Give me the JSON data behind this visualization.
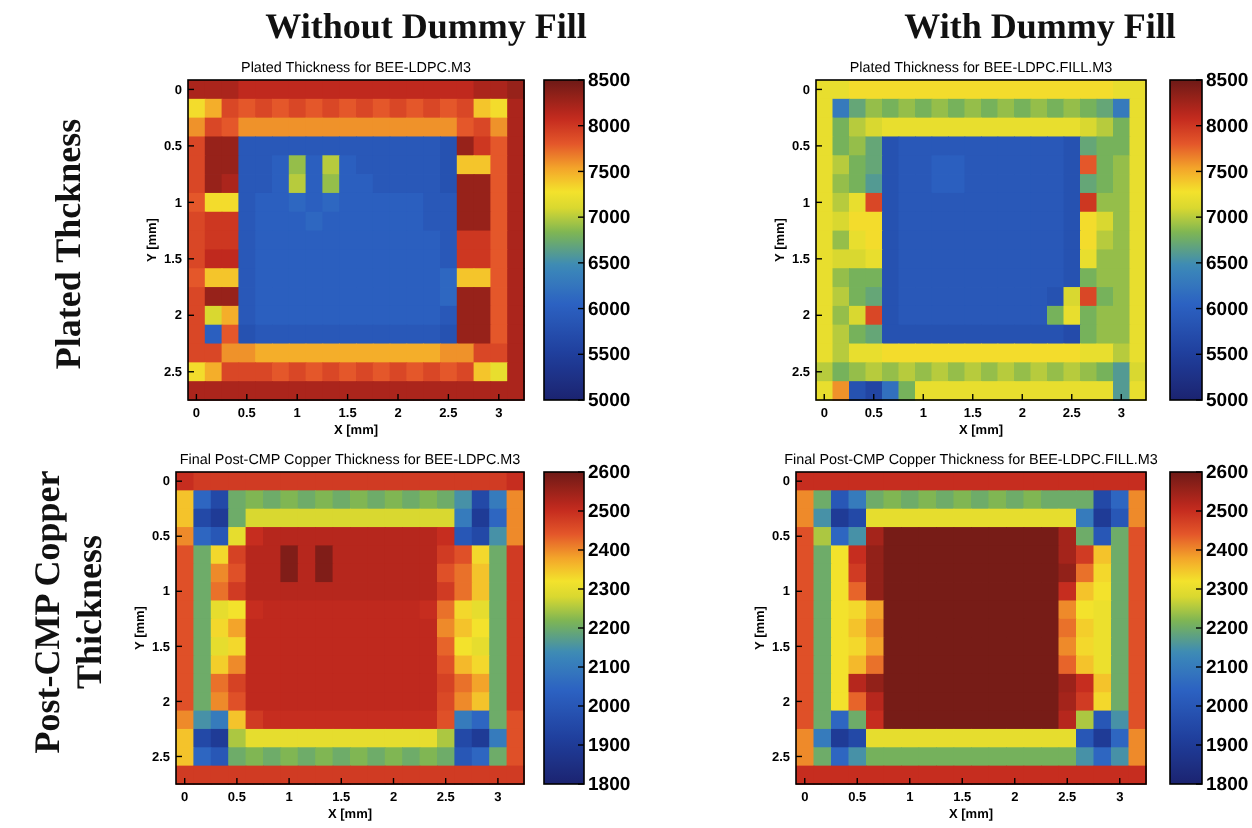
{
  "chart_data": [
    {
      "type": "heatmap",
      "title": "Plated Thickness for BEE-LDPC.M3",
      "xlabel": "X [mm]",
      "ylabel": "Y [mm]",
      "categories": [
        "0",
        null,
        null,
        "0.5",
        null,
        null,
        "1",
        null,
        null,
        "1.5",
        null,
        null,
        "2",
        null,
        null,
        "2.5",
        null,
        null,
        "3",
        null
      ],
      "y_categories": [
        "0",
        null,
        null,
        "0.5",
        null,
        null,
        "1",
        null,
        null,
        "1.5",
        null,
        null,
        "2",
        null,
        null,
        "2.5",
        null
      ],
      "cells": [
        [
          8200,
          8200,
          8200,
          8100,
          8100,
          8100,
          8100,
          8100,
          8100,
          8100,
          8100,
          8100,
          8100,
          8100,
          8100,
          8100,
          8100,
          8200,
          8200,
          8300
        ],
        [
          7300,
          7500,
          7900,
          7800,
          7900,
          7800,
          7900,
          7800,
          7900,
          7800,
          7900,
          7800,
          7900,
          7800,
          7900,
          7800,
          7900,
          7400,
          7300,
          8200
        ],
        [
          7600,
          7900,
          7800,
          7600,
          7600,
          7600,
          7600,
          7600,
          7600,
          7600,
          7600,
          7600,
          7600,
          7600,
          7600,
          7600,
          7800,
          7900,
          7600,
          8200
        ],
        [
          7900,
          8300,
          8300,
          5900,
          5900,
          5900,
          5900,
          5900,
          5900,
          5900,
          5900,
          5900,
          5900,
          5900,
          5900,
          5800,
          8300,
          8000,
          7800,
          8200
        ],
        [
          7900,
          8300,
          8300,
          5900,
          5900,
          6000,
          6900,
          6000,
          7000,
          6000,
          5900,
          5900,
          5900,
          5900,
          5900,
          5800,
          7400,
          7400,
          7800,
          8200
        ],
        [
          7900,
          8300,
          8200,
          5900,
          5900,
          6000,
          7000,
          6000,
          6900,
          6000,
          6000,
          5900,
          5900,
          5900,
          5900,
          5800,
          8300,
          8300,
          7800,
          8200
        ],
        [
          7800,
          7300,
          7300,
          5900,
          6000,
          6000,
          6100,
          6000,
          6100,
          6000,
          6000,
          6000,
          6000,
          6000,
          5900,
          5900,
          8300,
          8300,
          7800,
          8200
        ],
        [
          7900,
          8000,
          8000,
          5900,
          6000,
          6000,
          6000,
          6100,
          6000,
          6000,
          6000,
          6000,
          6000,
          6000,
          5900,
          5900,
          8300,
          8300,
          7800,
          8200
        ],
        [
          7900,
          8000,
          8000,
          5900,
          6000,
          6000,
          6000,
          6000,
          6000,
          6000,
          6000,
          6000,
          6000,
          6000,
          6000,
          5900,
          8000,
          8000,
          7800,
          8200
        ],
        [
          7900,
          8100,
          8100,
          5900,
          6000,
          6000,
          6000,
          6000,
          6000,
          6000,
          6000,
          6000,
          6000,
          6000,
          6000,
          5900,
          8000,
          8000,
          7800,
          8200
        ],
        [
          7800,
          7400,
          7400,
          5900,
          6000,
          6000,
          6000,
          6000,
          6000,
          6000,
          6000,
          6000,
          6000,
          6000,
          6000,
          6100,
          7400,
          7400,
          7800,
          8200
        ],
        [
          7900,
          8300,
          8300,
          5900,
          6000,
          6000,
          6000,
          6000,
          6000,
          6000,
          6000,
          6000,
          6000,
          6000,
          6000,
          6100,
          8300,
          8300,
          7800,
          8200
        ],
        [
          7900,
          7100,
          7500,
          5900,
          6000,
          6000,
          6000,
          6000,
          6000,
          6000,
          6000,
          6000,
          6000,
          6000,
          6000,
          5900,
          8300,
          8300,
          7800,
          8200
        ],
        [
          7900,
          6000,
          7800,
          5800,
          5900,
          5900,
          5900,
          5900,
          5900,
          5900,
          5900,
          5900,
          5900,
          5900,
          5900,
          5800,
          8300,
          8300,
          7800,
          8200
        ],
        [
          7900,
          7900,
          7600,
          7600,
          7500,
          7500,
          7500,
          7500,
          7500,
          7500,
          7500,
          7500,
          7500,
          7500,
          7500,
          7600,
          7600,
          7900,
          7900,
          8200
        ],
        [
          7300,
          7500,
          7900,
          7900,
          7900,
          7800,
          7900,
          7800,
          7900,
          7800,
          7900,
          7800,
          7900,
          7800,
          7900,
          7800,
          7900,
          7400,
          7200,
          8200
        ],
        [
          8200,
          8200,
          8200,
          8200,
          8200,
          8200,
          8200,
          8200,
          8200,
          8200,
          8200,
          8200,
          8200,
          8200,
          8200,
          8200,
          8200,
          8200,
          8200,
          8200
        ]
      ],
      "clim": [
        5000,
        8500
      ],
      "cticks": [
        5000,
        5500,
        6000,
        6500,
        7000,
        7500,
        8000,
        8500
      ]
    },
    {
      "type": "heatmap",
      "title": "Plated Thickness for BEE-LDPC.FILL.M3",
      "xlabel": "X [mm]",
      "ylabel": "Y [mm]",
      "categories": [
        "0",
        null,
        null,
        "0.5",
        null,
        null,
        "1",
        null,
        null,
        "1.5",
        null,
        null,
        "2",
        null,
        null,
        "2.5",
        null,
        null,
        "3",
        null
      ],
      "y_categories": [
        "0",
        null,
        null,
        "0.5",
        null,
        null,
        "1",
        null,
        null,
        "1.5",
        null,
        null,
        "2",
        null,
        null,
        "2.5",
        null
      ],
      "cells": [
        [
          7200,
          7200,
          7300,
          7300,
          7300,
          7300,
          7300,
          7300,
          7300,
          7300,
          7300,
          7300,
          7300,
          7300,
          7300,
          7300,
          7300,
          7300,
          7200,
          7200
        ],
        [
          7200,
          6300,
          6700,
          6900,
          6800,
          6900,
          6800,
          6900,
          6800,
          6900,
          6800,
          6900,
          6800,
          6900,
          6800,
          6900,
          6800,
          6700,
          6300,
          7200
        ],
        [
          7200,
          6800,
          7000,
          7100,
          7200,
          7200,
          7200,
          7200,
          7200,
          7200,
          7200,
          7200,
          7200,
          7200,
          7200,
          7200,
          7100,
          7000,
          6800,
          7200
        ],
        [
          7200,
          6800,
          6900,
          6700,
          5800,
          5900,
          5900,
          5900,
          5900,
          5900,
          5900,
          5900,
          5900,
          5900,
          5900,
          5800,
          6700,
          6800,
          6800,
          7200
        ],
        [
          7200,
          7000,
          6800,
          6700,
          5800,
          5900,
          5900,
          6000,
          6000,
          5900,
          5900,
          5900,
          5900,
          5900,
          5900,
          5800,
          7800,
          6800,
          6900,
          7200
        ],
        [
          7200,
          6900,
          6800,
          6600,
          5800,
          5900,
          5900,
          6000,
          6000,
          5900,
          5900,
          5900,
          5900,
          5900,
          5900,
          5800,
          6700,
          6800,
          6900,
          7200
        ],
        [
          7200,
          7000,
          7200,
          7900,
          5800,
          5900,
          5900,
          5900,
          5900,
          5900,
          5900,
          5900,
          5900,
          5900,
          5900,
          5800,
          8000,
          6900,
          6900,
          7200
        ],
        [
          7200,
          7100,
          7300,
          7300,
          5800,
          5900,
          5900,
          5900,
          5900,
          5900,
          5900,
          5900,
          5900,
          5900,
          5900,
          5800,
          7300,
          7100,
          6900,
          7200
        ],
        [
          7200,
          6900,
          7200,
          7300,
          5800,
          5900,
          5900,
          5900,
          5900,
          5900,
          5900,
          5900,
          5900,
          5900,
          5900,
          5800,
          7300,
          7000,
          6900,
          7200
        ],
        [
          7200,
          7100,
          7100,
          7200,
          5800,
          5900,
          5900,
          5900,
          5900,
          5900,
          5900,
          5900,
          5900,
          5900,
          5900,
          5800,
          7200,
          6900,
          6900,
          7200
        ],
        [
          7200,
          6900,
          6800,
          6800,
          5800,
          5900,
          5900,
          5900,
          5900,
          5900,
          5900,
          5900,
          5900,
          5900,
          5900,
          5800,
          6800,
          6900,
          6900,
          7200
        ],
        [
          7200,
          7000,
          6800,
          6700,
          5800,
          5900,
          5900,
          5900,
          5900,
          5900,
          5900,
          5900,
          5900,
          5900,
          5800,
          7100,
          7900,
          6800,
          6900,
          7200
        ],
        [
          7200,
          6900,
          7100,
          7900,
          5800,
          5900,
          5900,
          5900,
          5900,
          5900,
          5900,
          5900,
          5900,
          5900,
          6800,
          7200,
          6800,
          6900,
          6900,
          7200
        ],
        [
          7200,
          7000,
          6800,
          6700,
          5800,
          5800,
          5800,
          5800,
          5800,
          5800,
          5800,
          5800,
          5800,
          5800,
          5800,
          5700,
          6800,
          6900,
          6900,
          7200
        ],
        [
          7200,
          7000,
          7200,
          7200,
          7300,
          7300,
          7300,
          7300,
          7300,
          7300,
          7300,
          7300,
          7300,
          7300,
          7300,
          7300,
          7200,
          7200,
          7000,
          7200
        ],
        [
          7000,
          6800,
          6900,
          7000,
          6900,
          7000,
          6900,
          7000,
          6900,
          7000,
          6900,
          7000,
          6900,
          7000,
          6900,
          7000,
          6900,
          6800,
          6600,
          7100
        ],
        [
          7200,
          7600,
          5800,
          5600,
          6200,
          6800,
          7200,
          7200,
          7200,
          7200,
          7200,
          7200,
          7200,
          7200,
          7200,
          7200,
          7200,
          7200,
          6600,
          7200
        ]
      ],
      "clim": [
        5000,
        8500
      ],
      "cticks": [
        5000,
        5500,
        6000,
        6500,
        7000,
        7500,
        8000,
        8500
      ]
    },
    {
      "type": "heatmap",
      "title": "Final Post-CMP Copper Thickness for BEE-LDPC.M3",
      "xlabel": "X [mm]",
      "ylabel": "Y [mm]",
      "categories": [
        "0",
        null,
        null,
        "0.5",
        null,
        null,
        "1",
        null,
        null,
        "1.5",
        null,
        null,
        "2",
        null,
        null,
        "2.5",
        null,
        null,
        "3",
        null
      ],
      "y_categories": [
        "0",
        null,
        null,
        "0.5",
        null,
        null,
        "1",
        null,
        null,
        "1.5",
        null,
        null,
        "2",
        null,
        null,
        "2.5",
        null
      ],
      "cells": [
        [
          2500,
          2480,
          2480,
          2480,
          2480,
          2480,
          2480,
          2480,
          2480,
          2480,
          2480,
          2480,
          2480,
          2480,
          2480,
          2480,
          2480,
          2480,
          2480,
          2500
        ],
        [
          2350,
          2050,
          1950,
          2200,
          2220,
          2200,
          2220,
          2200,
          2220,
          2200,
          2220,
          2200,
          2220,
          2200,
          2220,
          2200,
          2150,
          1950,
          2100,
          2400
        ],
        [
          2350,
          1950,
          1900,
          2200,
          2280,
          2280,
          2280,
          2280,
          2280,
          2280,
          2280,
          2280,
          2280,
          2280,
          2280,
          2280,
          2100,
          1900,
          2050,
          2400
        ],
        [
          2400,
          2050,
          2000,
          2300,
          2500,
          2520,
          2520,
          2520,
          2520,
          2520,
          2520,
          2520,
          2520,
          2520,
          2520,
          2500,
          2000,
          1950,
          2150,
          2400
        ],
        [
          2450,
          2200,
          2330,
          2470,
          2520,
          2520,
          2580,
          2520,
          2580,
          2520,
          2520,
          2520,
          2520,
          2520,
          2520,
          2480,
          2450,
          2330,
          2200,
          2480
        ],
        [
          2450,
          2200,
          2400,
          2450,
          2520,
          2520,
          2580,
          2520,
          2580,
          2520,
          2520,
          2520,
          2520,
          2520,
          2520,
          2450,
          2420,
          2350,
          2200,
          2480
        ],
        [
          2450,
          2200,
          2420,
          2480,
          2520,
          2520,
          2520,
          2520,
          2520,
          2520,
          2520,
          2520,
          2520,
          2520,
          2520,
          2480,
          2420,
          2350,
          2200,
          2480
        ],
        [
          2450,
          2200,
          2300,
          2320,
          2500,
          2510,
          2510,
          2510,
          2510,
          2510,
          2510,
          2510,
          2510,
          2510,
          2500,
          2420,
          2330,
          2300,
          2200,
          2480
        ],
        [
          2450,
          2200,
          2330,
          2380,
          2510,
          2510,
          2510,
          2510,
          2510,
          2510,
          2510,
          2510,
          2510,
          2510,
          2510,
          2400,
          2350,
          2320,
          2200,
          2480
        ],
        [
          2450,
          2200,
          2300,
          2330,
          2510,
          2510,
          2510,
          2510,
          2510,
          2510,
          2510,
          2510,
          2510,
          2510,
          2510,
          2430,
          2320,
          2300,
          2200,
          2480
        ],
        [
          2450,
          2200,
          2340,
          2400,
          2510,
          2510,
          2510,
          2510,
          2510,
          2510,
          2510,
          2510,
          2510,
          2510,
          2510,
          2450,
          2360,
          2330,
          2200,
          2480
        ],
        [
          2450,
          2200,
          2420,
          2470,
          2510,
          2510,
          2510,
          2510,
          2510,
          2510,
          2510,
          2510,
          2510,
          2510,
          2510,
          2470,
          2420,
          2380,
          2200,
          2480
        ],
        [
          2450,
          2200,
          2400,
          2450,
          2510,
          2510,
          2510,
          2510,
          2510,
          2510,
          2510,
          2510,
          2510,
          2510,
          2510,
          2460,
          2400,
          2350,
          2200,
          2480
        ],
        [
          2400,
          2150,
          2100,
          2350,
          2480,
          2500,
          2500,
          2500,
          2500,
          2500,
          2500,
          2500,
          2500,
          2500,
          2500,
          2450,
          2100,
          2050,
          2200,
          2450
        ],
        [
          2350,
          1950,
          1900,
          2250,
          2300,
          2300,
          2300,
          2300,
          2300,
          2300,
          2300,
          2300,
          2300,
          2300,
          2300,
          2250,
          1950,
          1900,
          2100,
          2450
        ],
        [
          2350,
          2050,
          2000,
          2200,
          2220,
          2200,
          2220,
          2200,
          2220,
          2200,
          2220,
          2200,
          2220,
          2200,
          2220,
          2200,
          2000,
          2050,
          2200,
          2450
        ],
        [
          2480,
          2480,
          2480,
          2480,
          2480,
          2480,
          2480,
          2480,
          2480,
          2480,
          2480,
          2480,
          2480,
          2480,
          2480,
          2480,
          2480,
          2480,
          2480,
          2480
        ]
      ],
      "clim": [
        1800,
        2600
      ],
      "cticks": [
        1800,
        1900,
        2000,
        2100,
        2200,
        2300,
        2400,
        2500,
        2600
      ]
    },
    {
      "type": "heatmap",
      "title": "Final Post-CMP Copper Thickness for BEE-LDPC.FILL.M3",
      "xlabel": "X [mm]",
      "ylabel": "Y [mm]",
      "categories": [
        "0",
        null,
        null,
        "0.5",
        null,
        null,
        "1",
        null,
        null,
        "1.5",
        null,
        null,
        "2",
        null,
        null,
        "2.5",
        null,
        null,
        "3",
        null
      ],
      "y_categories": [
        "0",
        null,
        null,
        "0.5",
        null,
        null,
        "1",
        null,
        null,
        "1.5",
        null,
        null,
        "2",
        null,
        null,
        "2.5",
        null
      ],
      "cells": [
        [
          2500,
          2500,
          2500,
          2500,
          2500,
          2500,
          2500,
          2500,
          2500,
          2500,
          2500,
          2500,
          2500,
          2500,
          2500,
          2500,
          2500,
          2500,
          2500,
          2500
        ],
        [
          2400,
          2200,
          2000,
          2100,
          2200,
          2220,
          2200,
          2220,
          2200,
          2220,
          2200,
          2220,
          2200,
          2220,
          2200,
          2200,
          2200,
          1950,
          2050,
          2400
        ],
        [
          2400,
          2150,
          1900,
          1950,
          2300,
          2300,
          2300,
          2300,
          2300,
          2300,
          2300,
          2300,
          2300,
          2300,
          2300,
          2300,
          2100,
          1900,
          2000,
          2400
        ],
        [
          2450,
          2250,
          2050,
          2150,
          2540,
          2590,
          2590,
          2590,
          2590,
          2590,
          2590,
          2590,
          2590,
          2590,
          2590,
          2540,
          2200,
          2000,
          2200,
          2450
        ],
        [
          2450,
          2200,
          2320,
          2500,
          2560,
          2590,
          2590,
          2590,
          2590,
          2590,
          2590,
          2590,
          2590,
          2590,
          2590,
          2540,
          2480,
          2350,
          2200,
          2450
        ],
        [
          2450,
          2200,
          2320,
          2480,
          2560,
          2590,
          2590,
          2590,
          2590,
          2590,
          2590,
          2590,
          2590,
          2590,
          2590,
          2560,
          2420,
          2330,
          2200,
          2450
        ],
        [
          2450,
          2200,
          2320,
          2430,
          2560,
          2590,
          2590,
          2590,
          2590,
          2590,
          2590,
          2590,
          2590,
          2590,
          2590,
          2500,
          2350,
          2320,
          2200,
          2450
        ],
        [
          2450,
          2200,
          2320,
          2330,
          2380,
          2590,
          2590,
          2590,
          2590,
          2590,
          2590,
          2590,
          2590,
          2590,
          2590,
          2400,
          2320,
          2310,
          2200,
          2450
        ],
        [
          2450,
          2200,
          2320,
          2350,
          2400,
          2590,
          2590,
          2590,
          2590,
          2590,
          2590,
          2590,
          2590,
          2590,
          2590,
          2420,
          2340,
          2310,
          2200,
          2450
        ],
        [
          2450,
          2200,
          2320,
          2330,
          2380,
          2590,
          2590,
          2590,
          2590,
          2590,
          2590,
          2590,
          2590,
          2590,
          2590,
          2400,
          2330,
          2310,
          2200,
          2450
        ],
        [
          2450,
          2200,
          2320,
          2360,
          2420,
          2590,
          2590,
          2590,
          2590,
          2590,
          2590,
          2590,
          2590,
          2590,
          2590,
          2430,
          2350,
          2310,
          2200,
          2450
        ],
        [
          2450,
          2200,
          2320,
          2520,
          2560,
          2590,
          2590,
          2590,
          2590,
          2590,
          2590,
          2590,
          2590,
          2590,
          2590,
          2550,
          2500,
          2350,
          2200,
          2450
        ],
        [
          2450,
          2200,
          2320,
          2430,
          2520,
          2590,
          2590,
          2590,
          2590,
          2590,
          2590,
          2590,
          2590,
          2590,
          2590,
          2540,
          2480,
          2330,
          2200,
          2450
        ],
        [
          2450,
          2200,
          2050,
          2200,
          2500,
          2590,
          2590,
          2590,
          2590,
          2590,
          2590,
          2590,
          2590,
          2590,
          2590,
          2520,
          2250,
          2000,
          2150,
          2450
        ],
        [
          2400,
          2100,
          1900,
          1950,
          2300,
          2300,
          2300,
          2300,
          2300,
          2300,
          2300,
          2300,
          2300,
          2300,
          2300,
          2300,
          2000,
          1900,
          2050,
          2400
        ],
        [
          2400,
          2200,
          2050,
          2150,
          2210,
          2210,
          2210,
          2210,
          2210,
          2210,
          2210,
          2210,
          2210,
          2210,
          2210,
          2210,
          2150,
          2050,
          2150,
          2400
        ],
        [
          2500,
          2500,
          2500,
          2500,
          2500,
          2500,
          2500,
          2500,
          2500,
          2500,
          2500,
          2500,
          2500,
          2500,
          2500,
          2500,
          2500,
          2500,
          2500,
          2500
        ]
      ],
      "clim": [
        1800,
        2600
      ],
      "cticks": [
        1800,
        1900,
        2000,
        2100,
        2200,
        2300,
        2400,
        2500,
        2600
      ]
    },
    {
      "type": "other",
      "annotations": [
        "Without Dummy Fill",
        "With Dummy Fill",
        "Plated Thckness",
        "Post-CMP Copper Thickness"
      ]
    }
  ]
}
